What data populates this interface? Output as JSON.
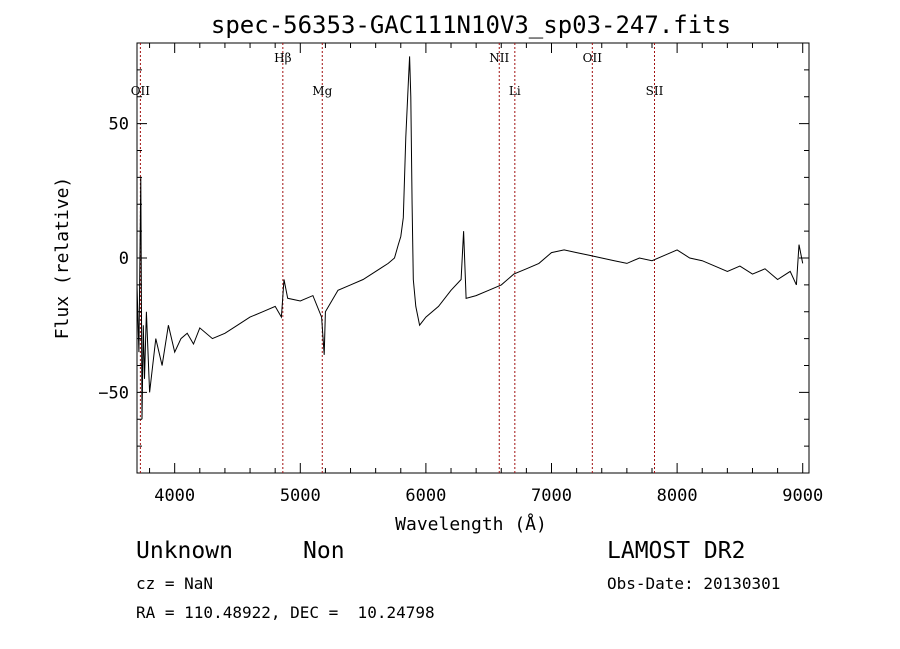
{
  "chart_data": {
    "type": "line",
    "title": "spec-56353-GAC111N10V3_sp03-247.fits",
    "xlabel": "Wavelength (Å)",
    "ylabel": "Flux (relative)",
    "xlim": [
      3700,
      9050
    ],
    "ylim": [
      -80,
      80
    ],
    "xticks": [
      4000,
      5000,
      6000,
      7000,
      8000,
      9000
    ],
    "yticks": [
      -50,
      0,
      50
    ],
    "yticklabels": [
      "−50",
      "0",
      "50"
    ],
    "grid": false,
    "line_color": "#000000",
    "marker_color": "#a01010",
    "lines": [
      {
        "label": "OII",
        "x": 3727
      },
      {
        "label": "Hβ",
        "x": 4861
      },
      {
        "label": "Mg",
        "x": 5175
      },
      {
        "label": "NII",
        "x": 6584
      },
      {
        "label": "Li",
        "x": 6708
      },
      {
        "label": "OII",
        "x": 7325
      },
      {
        "label": "SII",
        "x": 7820
      }
    ],
    "series": [
      {
        "x": [
          3700,
          3715,
          3730,
          3740,
          3750,
          3760,
          3775,
          3800,
          3850,
          3900,
          3950,
          4000,
          4050,
          4100,
          4150,
          4200,
          4300,
          4400,
          4500,
          4600,
          4700,
          4800,
          4850,
          4870,
          4900,
          5000,
          5100,
          5170,
          5190,
          5200,
          5300,
          5400,
          5500,
          5600,
          5700,
          5750,
          5780,
          5800,
          5820,
          5840,
          5860,
          5870,
          5880,
          5890,
          5900,
          5920,
          5950,
          6000,
          6100,
          6200,
          6280,
          6300,
          6320,
          6400,
          6500,
          6600,
          6700,
          6800,
          6900,
          7000,
          7100,
          7200,
          7300,
          7400,
          7500,
          7600,
          7700,
          7800,
          7900,
          8000,
          8100,
          8200,
          8300,
          8400,
          8500,
          8600,
          8700,
          8800,
          8900,
          8950,
          8970,
          9000
        ],
        "y": [
          -10,
          -35,
          30,
          -60,
          -25,
          -45,
          -20,
          -50,
          -30,
          -40,
          -25,
          -35,
          -30,
          -28,
          -32,
          -26,
          -30,
          -28,
          -25,
          -22,
          -20,
          -18,
          -22,
          -8,
          -15,
          -16,
          -14,
          -22,
          -36,
          -20,
          -12,
          -10,
          -8,
          -5,
          -2,
          0,
          5,
          8,
          15,
          45,
          65,
          75,
          60,
          20,
          -8,
          -18,
          -25,
          -22,
          -18,
          -12,
          -8,
          10,
          -15,
          -14,
          -12,
          -10,
          -6,
          -4,
          -2,
          2,
          3,
          2,
          1,
          0,
          -1,
          -2,
          0,
          -1,
          1,
          3,
          0,
          -1,
          -3,
          -5,
          -3,
          -6,
          -4,
          -8,
          -5,
          -10,
          5,
          -2
        ]
      }
    ]
  },
  "info": {
    "class_label": "Unknown",
    "subclass_label": "Non",
    "survey": "LAMOST DR2",
    "cz": "cz = NaN",
    "obs_date": "Obs-Date: 20130301",
    "coords": "RA = 110.48922, DEC =  10.24798"
  }
}
